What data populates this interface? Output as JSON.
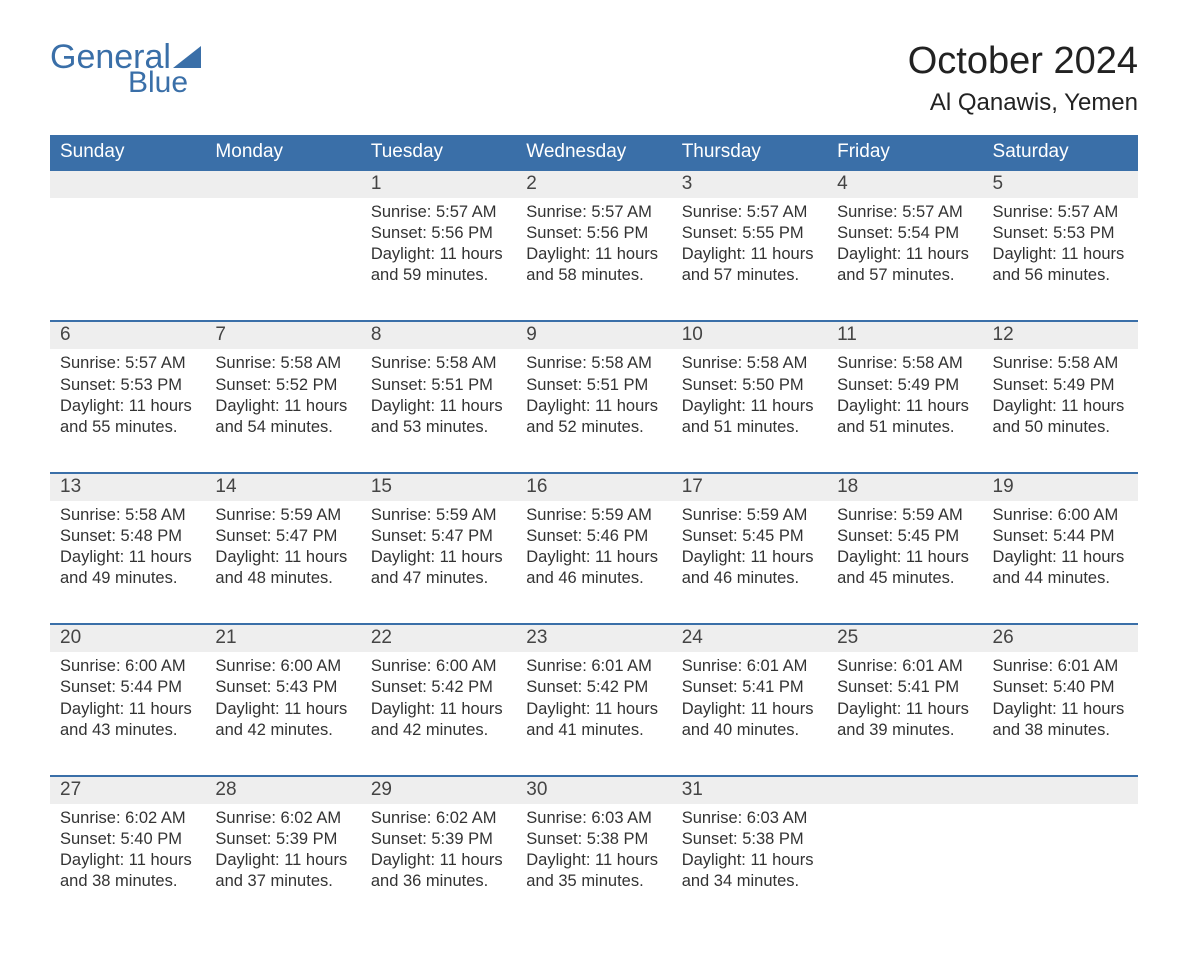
{
  "logo": {
    "word1": "General",
    "word2": "Blue",
    "color": "#3a6fa8"
  },
  "title": "October 2024",
  "location": "Al Qanawis, Yemen",
  "colors": {
    "header_bg": "#3a6fa8",
    "header_text": "#ffffff",
    "daynum_bg": "#eeeeee",
    "row_border": "#3a6fa8",
    "body_text": "#333333",
    "page_bg": "#ffffff"
  },
  "day_headers": [
    "Sunday",
    "Monday",
    "Tuesday",
    "Wednesday",
    "Thursday",
    "Friday",
    "Saturday"
  ],
  "weeks": [
    [
      null,
      null,
      {
        "n": "1",
        "sunrise": "5:57 AM",
        "sunset": "5:56 PM",
        "daylight": "11 hours and 59 minutes."
      },
      {
        "n": "2",
        "sunrise": "5:57 AM",
        "sunset": "5:56 PM",
        "daylight": "11 hours and 58 minutes."
      },
      {
        "n": "3",
        "sunrise": "5:57 AM",
        "sunset": "5:55 PM",
        "daylight": "11 hours and 57 minutes."
      },
      {
        "n": "4",
        "sunrise": "5:57 AM",
        "sunset": "5:54 PM",
        "daylight": "11 hours and 57 minutes."
      },
      {
        "n": "5",
        "sunrise": "5:57 AM",
        "sunset": "5:53 PM",
        "daylight": "11 hours and 56 minutes."
      }
    ],
    [
      {
        "n": "6",
        "sunrise": "5:57 AM",
        "sunset": "5:53 PM",
        "daylight": "11 hours and 55 minutes."
      },
      {
        "n": "7",
        "sunrise": "5:58 AM",
        "sunset": "5:52 PM",
        "daylight": "11 hours and 54 minutes."
      },
      {
        "n": "8",
        "sunrise": "5:58 AM",
        "sunset": "5:51 PM",
        "daylight": "11 hours and 53 minutes."
      },
      {
        "n": "9",
        "sunrise": "5:58 AM",
        "sunset": "5:51 PM",
        "daylight": "11 hours and 52 minutes."
      },
      {
        "n": "10",
        "sunrise": "5:58 AM",
        "sunset": "5:50 PM",
        "daylight": "11 hours and 51 minutes."
      },
      {
        "n": "11",
        "sunrise": "5:58 AM",
        "sunset": "5:49 PM",
        "daylight": "11 hours and 51 minutes."
      },
      {
        "n": "12",
        "sunrise": "5:58 AM",
        "sunset": "5:49 PM",
        "daylight": "11 hours and 50 minutes."
      }
    ],
    [
      {
        "n": "13",
        "sunrise": "5:58 AM",
        "sunset": "5:48 PM",
        "daylight": "11 hours and 49 minutes."
      },
      {
        "n": "14",
        "sunrise": "5:59 AM",
        "sunset": "5:47 PM",
        "daylight": "11 hours and 48 minutes."
      },
      {
        "n": "15",
        "sunrise": "5:59 AM",
        "sunset": "5:47 PM",
        "daylight": "11 hours and 47 minutes."
      },
      {
        "n": "16",
        "sunrise": "5:59 AM",
        "sunset": "5:46 PM",
        "daylight": "11 hours and 46 minutes."
      },
      {
        "n": "17",
        "sunrise": "5:59 AM",
        "sunset": "5:45 PM",
        "daylight": "11 hours and 46 minutes."
      },
      {
        "n": "18",
        "sunrise": "5:59 AM",
        "sunset": "5:45 PM",
        "daylight": "11 hours and 45 minutes."
      },
      {
        "n": "19",
        "sunrise": "6:00 AM",
        "sunset": "5:44 PM",
        "daylight": "11 hours and 44 minutes."
      }
    ],
    [
      {
        "n": "20",
        "sunrise": "6:00 AM",
        "sunset": "5:44 PM",
        "daylight": "11 hours and 43 minutes."
      },
      {
        "n": "21",
        "sunrise": "6:00 AM",
        "sunset": "5:43 PM",
        "daylight": "11 hours and 42 minutes."
      },
      {
        "n": "22",
        "sunrise": "6:00 AM",
        "sunset": "5:42 PM",
        "daylight": "11 hours and 42 minutes."
      },
      {
        "n": "23",
        "sunrise": "6:01 AM",
        "sunset": "5:42 PM",
        "daylight": "11 hours and 41 minutes."
      },
      {
        "n": "24",
        "sunrise": "6:01 AM",
        "sunset": "5:41 PM",
        "daylight": "11 hours and 40 minutes."
      },
      {
        "n": "25",
        "sunrise": "6:01 AM",
        "sunset": "5:41 PM",
        "daylight": "11 hours and 39 minutes."
      },
      {
        "n": "26",
        "sunrise": "6:01 AM",
        "sunset": "5:40 PM",
        "daylight": "11 hours and 38 minutes."
      }
    ],
    [
      {
        "n": "27",
        "sunrise": "6:02 AM",
        "sunset": "5:40 PM",
        "daylight": "11 hours and 38 minutes."
      },
      {
        "n": "28",
        "sunrise": "6:02 AM",
        "sunset": "5:39 PM",
        "daylight": "11 hours and 37 minutes."
      },
      {
        "n": "29",
        "sunrise": "6:02 AM",
        "sunset": "5:39 PM",
        "daylight": "11 hours and 36 minutes."
      },
      {
        "n": "30",
        "sunrise": "6:03 AM",
        "sunset": "5:38 PM",
        "daylight": "11 hours and 35 minutes."
      },
      {
        "n": "31",
        "sunrise": "6:03 AM",
        "sunset": "5:38 PM",
        "daylight": "11 hours and 34 minutes."
      },
      null,
      null
    ]
  ],
  "labels": {
    "sunrise": "Sunrise:",
    "sunset": "Sunset:",
    "daylight": "Daylight:"
  }
}
